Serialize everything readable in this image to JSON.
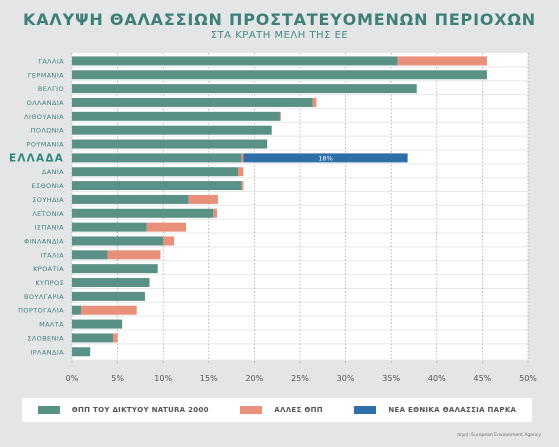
{
  "title": "ΚΑΛΥΨΗ ΘΑΛΑΣΣΙΩΝ ΠΡΟΣΤΑΤΕΥΟΜΕΝΩΝ ΠΕΡΙΟΧΩΝ",
  "subtitle": "ΣΤΑ ΚΡΑΤΗ ΜΕΛΗ ΤΗΣ ΕΕ",
  "source": "πηγή: European Environment Agency",
  "colors": {
    "natura": "#5a9186",
    "other": "#e8907a",
    "park": "#2f6fa7",
    "highlight_label": "#2f8a7c",
    "label": "#3f7f78"
  },
  "legend": [
    {
      "label": "ΘΠΠ ΤΟΥ ΔΙΚΤΥΟΥ NATURA 2000",
      "color": "#5a9186"
    },
    {
      "label": "ΑΛΛΕΣ ΘΠΠ",
      "color": "#e8907a"
    },
    {
      "label": "ΝΕΑ ΕΘΝΙΚΑ ΘΑΛΑΣΣΙΑ ΠΑΡΚΑ",
      "color": "#2f6fa7"
    }
  ],
  "chart_data": {
    "type": "bar",
    "orientation": "horizontal",
    "stacked": true,
    "categories": [
      "ΓΑΛΛΙΑ",
      "ΓΕΡΜΑΝΙΑ",
      "ΒΕΛΓΙΟ",
      "ΟΛΛΑΝΔΙΑ",
      "ΛΙΘΟΥΑΝΙΑ",
      "ΠΟΛΩΝΙΑ",
      "ΡΟΥΜΑΝΙΑ",
      "ΕΛΛΑΔΑ",
      "ΔΑΝΙΑ",
      "ΕΣΘΟΝΙΑ",
      "ΣΟΥΗΔΙΑ",
      "ΛΕΤΟΝΙΑ",
      "ΙΣΠΑΝΙΑ",
      "ΦΙΝΛΑΝΔΙΑ",
      "ΙΤΑΛΙΑ",
      "ΚΡΟΑΤΙΑ",
      "ΚΥΠΡΟΣ",
      "ΒΟΥΛΓΑΡΙΑ",
      "ΠΟΡΤΟΓΑΛΙΑ",
      "ΜΑΛΤΑ",
      "ΣΛΟΒΕΝΙΑ",
      "ΙΡΛΑΝΔΙΑ"
    ],
    "highlight_category": "ΕΛΛΑΔΑ",
    "series": [
      {
        "name": "ΘΠΠ ΤΟΥ ΔΙΚΤΥΟΥ NATURA 2000",
        "values": [
          35.7,
          45.5,
          37.8,
          26.4,
          22.8,
          21.9,
          21.4,
          18.6,
          18.2,
          18.6,
          12.8,
          15.5,
          8.2,
          10.0,
          3.9,
          9.4,
          8.5,
          8.0,
          1.0,
          5.5,
          4.5,
          2.0
        ]
      },
      {
        "name": "ΑΛΛΕΣ ΘΠΠ",
        "values": [
          9.8,
          0,
          0,
          0.4,
          0.1,
          0,
          0,
          0.2,
          0.6,
          0.2,
          3.2,
          0.4,
          4.3,
          1.2,
          5.8,
          0,
          0,
          0,
          6.1,
          0,
          0.5,
          0
        ]
      },
      {
        "name": "ΝΕΑ ΕΘΝΙΚΑ ΘΑΛΑΣΣΙΑ ΠΑΡΚΑ",
        "values": [
          0,
          0,
          0,
          0,
          0,
          0,
          0,
          18.0,
          0,
          0,
          0,
          0,
          0,
          0,
          0,
          0,
          0,
          0,
          0,
          0,
          0,
          0
        ]
      }
    ],
    "data_labels": [
      {
        "category": "ΕΛΛΑΔΑ",
        "series": "ΝΕΑ ΕΘΝΙΚΑ ΘΑΛΑΣΣΙΑ ΠΑΡΚΑ",
        "text": "18%"
      }
    ],
    "xlim": [
      0,
      50
    ],
    "xticks": [
      "0%",
      "5%",
      "10%",
      "15%",
      "20%",
      "25%",
      "30%",
      "35%",
      "40%",
      "45%",
      "50%"
    ],
    "grid": true,
    "legend_position": "bottom"
  }
}
